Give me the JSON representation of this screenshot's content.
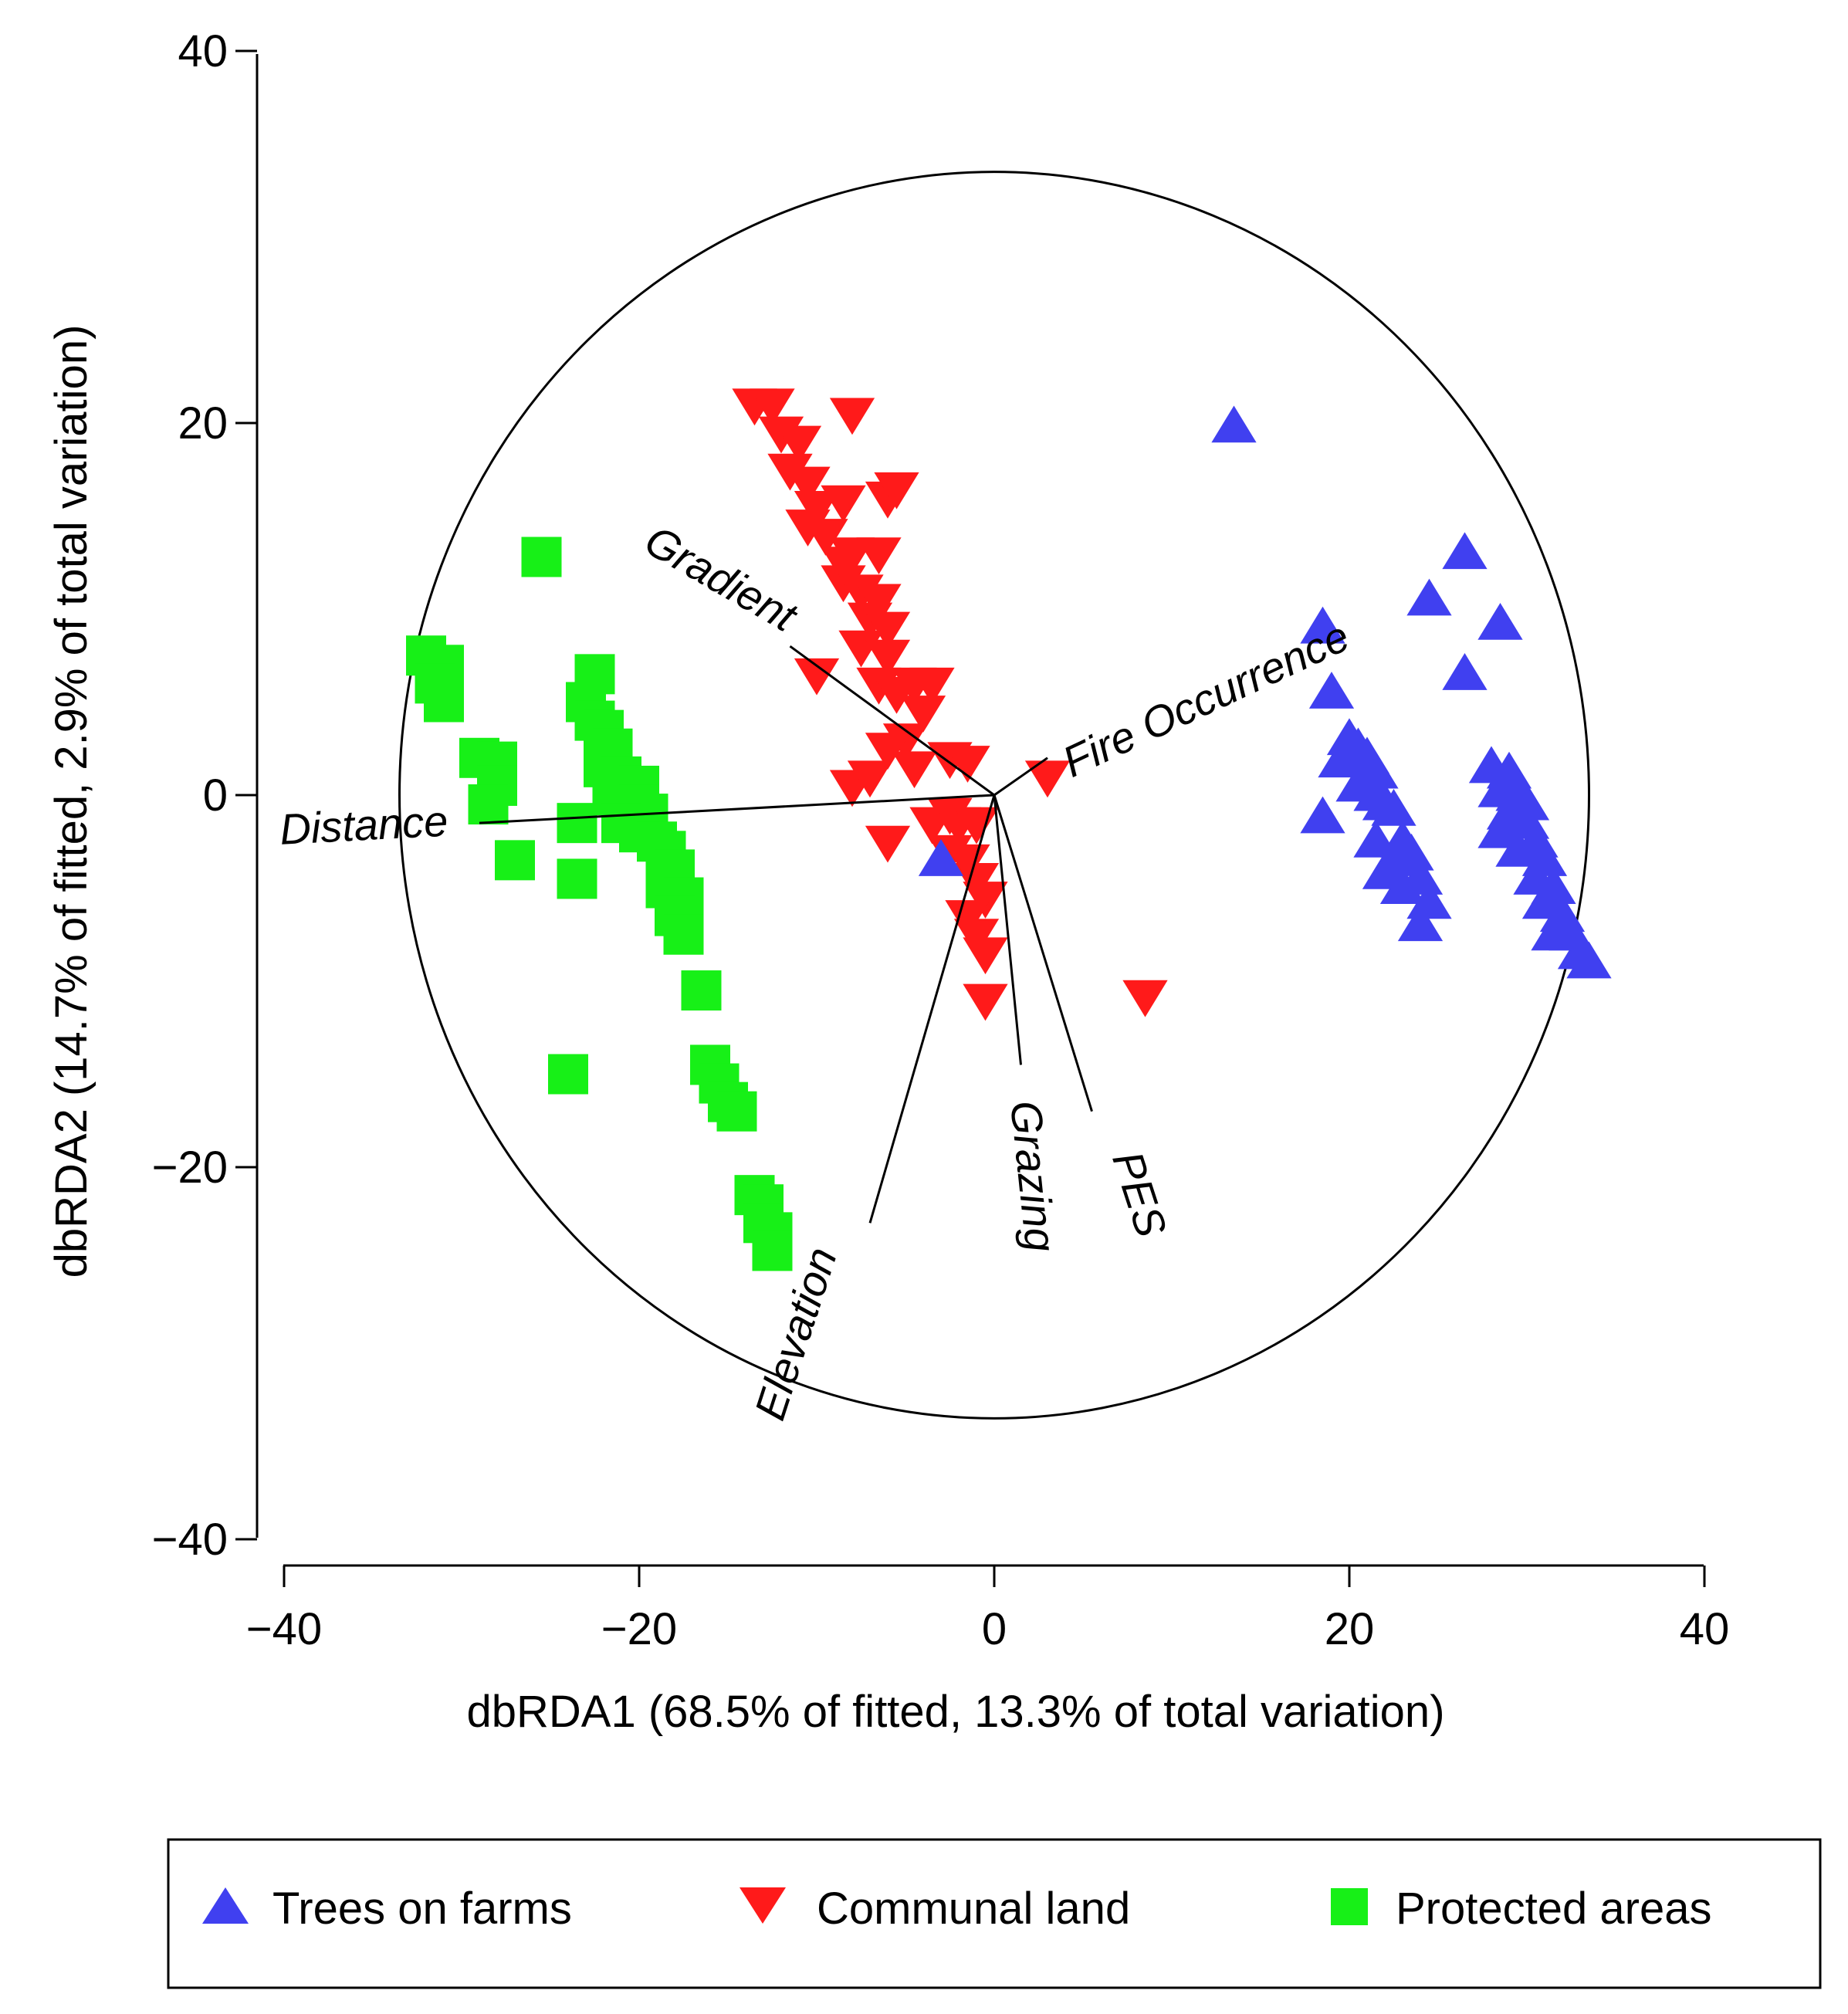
{
  "chart_data": {
    "type": "scatter",
    "title": "",
    "xlabel": "dbRDA1 (68.5% of fitted, 13.3% of total variation)",
    "ylabel": "dbRDA2 (14.7% of fitted, 2.9% of total variation)",
    "xlim": [
      -40,
      40
    ],
    "ylim": [
      -40,
      40
    ],
    "x_ticks": [
      -40,
      -20,
      0,
      20,
      40
    ],
    "y_ticks": [
      -40,
      -20,
      0,
      20,
      40
    ],
    "x_tick_labels": [
      "−40",
      "−20",
      "0",
      "20",
      "40"
    ],
    "y_tick_labels": [
      "−40",
      "−20",
      "0",
      "20",
      "40"
    ],
    "grid": false,
    "legend_position": "bottom",
    "correlation_circle": {
      "center": [
        0,
        0
      ],
      "radius": 33.5
    },
    "vectors": [
      {
        "name": "Gradient",
        "end": [
          -11.5,
          8.0
        ],
        "label": "Gradient",
        "label_pos": [
          -15.5,
          11.5
        ],
        "label_angle": 30
      },
      {
        "name": "Fire Occurrence",
        "end": [
          3.0,
          2.0
        ],
        "label": "Fire Occurrence",
        "label_pos": [
          12.0,
          5.0
        ],
        "label_angle": -25
      },
      {
        "name": "Distance",
        "end": [
          -29.0,
          -1.5
        ],
        "label": "Distance",
        "label_pos": [
          -35.5,
          -1.8
        ],
        "label_angle": -3
      },
      {
        "name": "Elevation",
        "end": [
          -7.0,
          -23.0
        ],
        "label": "Elevation",
        "label_pos": [
          -11.0,
          -29.0
        ],
        "label_angle": -72
      },
      {
        "name": "Grazing",
        "end": [
          1.5,
          -14.5
        ],
        "label": "Grazing",
        "label_pos": [
          2.0,
          -20.5
        ],
        "label_angle": 84
      },
      {
        "name": "PES",
        "end": [
          5.5,
          -17.0
        ],
        "label": "PES",
        "label_pos": [
          8.0,
          -21.5
        ],
        "label_angle": 72
      }
    ],
    "series": [
      {
        "name": "Trees on farms",
        "marker": "triangle-up",
        "color": "#4040f0",
        "points": [
          [
            13.5,
            19.8
          ],
          [
            26.5,
            13.0
          ],
          [
            24.5,
            10.5
          ],
          [
            28.5,
            9.2
          ],
          [
            18.5,
            9.0
          ],
          [
            26.5,
            6.5
          ],
          [
            19.0,
            5.5
          ],
          [
            20.0,
            3.0
          ],
          [
            20.5,
            2.5
          ],
          [
            21.0,
            2.0
          ],
          [
            19.5,
            1.8
          ],
          [
            21.5,
            1.2
          ],
          [
            20.5,
            0.5
          ],
          [
            21.5,
            0.0
          ],
          [
            22.0,
            -0.5
          ],
          [
            18.5,
            -1.2
          ],
          [
            22.5,
            -0.8
          ],
          [
            23.0,
            -2.5
          ],
          [
            21.5,
            -2.5
          ],
          [
            22.5,
            -3.5
          ],
          [
            23.5,
            -3.2
          ],
          [
            22.0,
            -4.2
          ],
          [
            24.0,
            -4.5
          ],
          [
            23.0,
            -5.0
          ],
          [
            24.5,
            -5.8
          ],
          [
            24.0,
            -7.0
          ],
          [
            28.0,
            1.5
          ],
          [
            29.0,
            1.2
          ],
          [
            28.5,
            0.2
          ],
          [
            29.5,
            0.0
          ],
          [
            30.0,
            -0.5
          ],
          [
            29.0,
            -1.0
          ],
          [
            28.5,
            -2.0
          ],
          [
            30.0,
            -1.5
          ],
          [
            30.5,
            -2.5
          ],
          [
            29.5,
            -3.0
          ],
          [
            31.0,
            -3.5
          ],
          [
            30.5,
            -4.5
          ],
          [
            31.5,
            -5.0
          ],
          [
            31.0,
            -5.8
          ],
          [
            32.0,
            -6.5
          ],
          [
            31.5,
            -7.5
          ],
          [
            32.5,
            -7.5
          ],
          [
            33.0,
            -8.5
          ],
          [
            33.5,
            -9.0
          ],
          [
            -3.0,
            -3.5
          ]
        ]
      },
      {
        "name": "Communal land",
        "marker": "triangle-down",
        "color": "#ff1a1a",
        "points": [
          [
            -13.5,
            21.0
          ],
          [
            -12.5,
            21.0
          ],
          [
            -12.0,
            19.5
          ],
          [
            -11.0,
            19.0
          ],
          [
            -8.0,
            20.5
          ],
          [
            -11.5,
            17.5
          ],
          [
            -10.5,
            16.8
          ],
          [
            -10.0,
            15.5
          ],
          [
            -8.5,
            15.8
          ],
          [
            -6.0,
            16.0
          ],
          [
            -5.5,
            16.5
          ],
          [
            -10.5,
            14.5
          ],
          [
            -9.5,
            14.0
          ],
          [
            -8.5,
            12.5
          ],
          [
            -8.0,
            13.0
          ],
          [
            -6.5,
            13.0
          ],
          [
            -8.5,
            11.5
          ],
          [
            -7.5,
            11.0
          ],
          [
            -6.5,
            10.5
          ],
          [
            -7.0,
            9.5
          ],
          [
            -6.0,
            9.0
          ],
          [
            -7.5,
            8.0
          ],
          [
            -6.0,
            7.5
          ],
          [
            -10.0,
            6.5
          ],
          [
            -6.5,
            6.0
          ],
          [
            -5.5,
            5.5
          ],
          [
            -4.5,
            6.0
          ],
          [
            -3.5,
            6.0
          ],
          [
            -4.0,
            4.5
          ],
          [
            -5.0,
            3.0
          ],
          [
            -6.0,
            2.5
          ],
          [
            -4.5,
            1.5
          ],
          [
            -2.5,
            2.0
          ],
          [
            -1.5,
            1.8
          ],
          [
            3.0,
            1.0
          ],
          [
            -8.0,
            0.5
          ],
          [
            -7.0,
            1.0
          ],
          [
            -3.5,
            -1.5
          ],
          [
            -2.5,
            -1.0
          ],
          [
            -2.0,
            -1.5
          ],
          [
            -1.0,
            -1.5
          ],
          [
            -6.0,
            -2.5
          ],
          [
            -2.5,
            -3.0
          ],
          [
            -1.5,
            -3.5
          ],
          [
            -1.0,
            -4.5
          ],
          [
            -0.5,
            -5.5
          ],
          [
            -1.5,
            -6.5
          ],
          [
            -1.0,
            -7.5
          ],
          [
            -0.5,
            -8.5
          ],
          [
            -0.5,
            -11.0
          ],
          [
            8.5,
            -10.8
          ]
        ]
      },
      {
        "name": "Protected areas",
        "marker": "square",
        "color": "#17f017",
        "points": [
          [
            -25.5,
            12.8
          ],
          [
            -32.0,
            7.5
          ],
          [
            -31.0,
            7.0
          ],
          [
            -31.5,
            6.0
          ],
          [
            -31.0,
            5.0
          ],
          [
            -22.5,
            6.5
          ],
          [
            -23.0,
            5.0
          ],
          [
            -22.5,
            4.0
          ],
          [
            -22.0,
            3.5
          ],
          [
            -21.5,
            2.5
          ],
          [
            -22.0,
            1.5
          ],
          [
            -21.0,
            1.0
          ],
          [
            -20.0,
            0.5
          ],
          [
            -29.0,
            2.0
          ],
          [
            -28.0,
            1.8
          ],
          [
            -28.0,
            0.5
          ],
          [
            -28.5,
            -0.5
          ],
          [
            -21.5,
            0.0
          ],
          [
            -20.0,
            -0.5
          ],
          [
            -19.5,
            -1.0
          ],
          [
            -21.0,
            -1.5
          ],
          [
            -20.0,
            -2.0
          ],
          [
            -19.0,
            -2.5
          ],
          [
            -23.5,
            -1.5
          ],
          [
            -18.5,
            -3.0
          ],
          [
            -18.0,
            -4.0
          ],
          [
            -18.5,
            -5.0
          ],
          [
            -17.5,
            -5.5
          ],
          [
            -18.0,
            -6.5
          ],
          [
            -17.5,
            -7.5
          ],
          [
            -27.0,
            -3.5
          ],
          [
            -23.5,
            -4.5
          ],
          [
            -16.5,
            -10.5
          ],
          [
            -16.0,
            -14.5
          ],
          [
            -15.5,
            -15.5
          ],
          [
            -15.0,
            -16.5
          ],
          [
            -14.5,
            -17.0
          ],
          [
            -24.0,
            -15.0
          ],
          [
            -13.5,
            -21.5
          ],
          [
            -13.0,
            -22.0
          ],
          [
            -13.0,
            -23.0
          ],
          [
            -12.5,
            -23.5
          ],
          [
            -12.5,
            -24.5
          ]
        ]
      }
    ]
  },
  "legend": {
    "items": [
      {
        "label": "Trees on farms",
        "marker": "triangle-up",
        "color": "#4040f0"
      },
      {
        "label": "Communal land",
        "marker": "triangle-down",
        "color": "#ff1a1a"
      },
      {
        "label": "Protected areas",
        "marker": "square",
        "color": "#17f017"
      }
    ]
  }
}
